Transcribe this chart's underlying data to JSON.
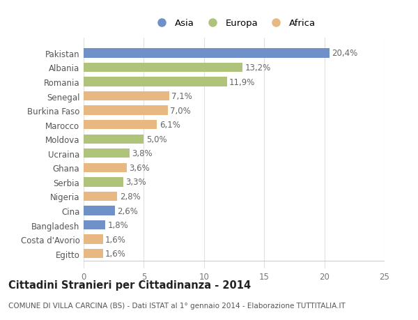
{
  "countries": [
    "Pakistan",
    "Albania",
    "Romania",
    "Senegal",
    "Burkina Faso",
    "Marocco",
    "Moldova",
    "Ucraina",
    "Ghana",
    "Serbia",
    "Nigeria",
    "Cina",
    "Bangladesh",
    "Costa d'Avorio",
    "Egitto"
  ],
  "values": [
    20.4,
    13.2,
    11.9,
    7.1,
    7.0,
    6.1,
    5.0,
    3.8,
    3.6,
    3.3,
    2.8,
    2.6,
    1.8,
    1.6,
    1.6
  ],
  "regions": [
    "Asia",
    "Europa",
    "Europa",
    "Africa",
    "Africa",
    "Africa",
    "Europa",
    "Europa",
    "Africa",
    "Europa",
    "Africa",
    "Asia",
    "Asia",
    "Africa",
    "Africa"
  ],
  "colors": {
    "Asia": "#7090c8",
    "Europa": "#afc47a",
    "Africa": "#e8b882"
  },
  "xlim": [
    0,
    25
  ],
  "xticks": [
    0,
    5,
    10,
    15,
    20,
    25
  ],
  "title": "Cittadini Stranieri per Cittadinanza - 2014",
  "subtitle": "COMUNE DI VILLA CARCINA (BS) - Dati ISTAT al 1° gennaio 2014 - Elaborazione TUTTITALIA.IT",
  "bg_color": "#ffffff",
  "bar_height": 0.65,
  "label_fontsize": 8.5,
  "ytick_fontsize": 8.5,
  "xtick_fontsize": 8.5,
  "title_fontsize": 10.5,
  "subtitle_fontsize": 7.5,
  "legend_fontsize": 9.5
}
